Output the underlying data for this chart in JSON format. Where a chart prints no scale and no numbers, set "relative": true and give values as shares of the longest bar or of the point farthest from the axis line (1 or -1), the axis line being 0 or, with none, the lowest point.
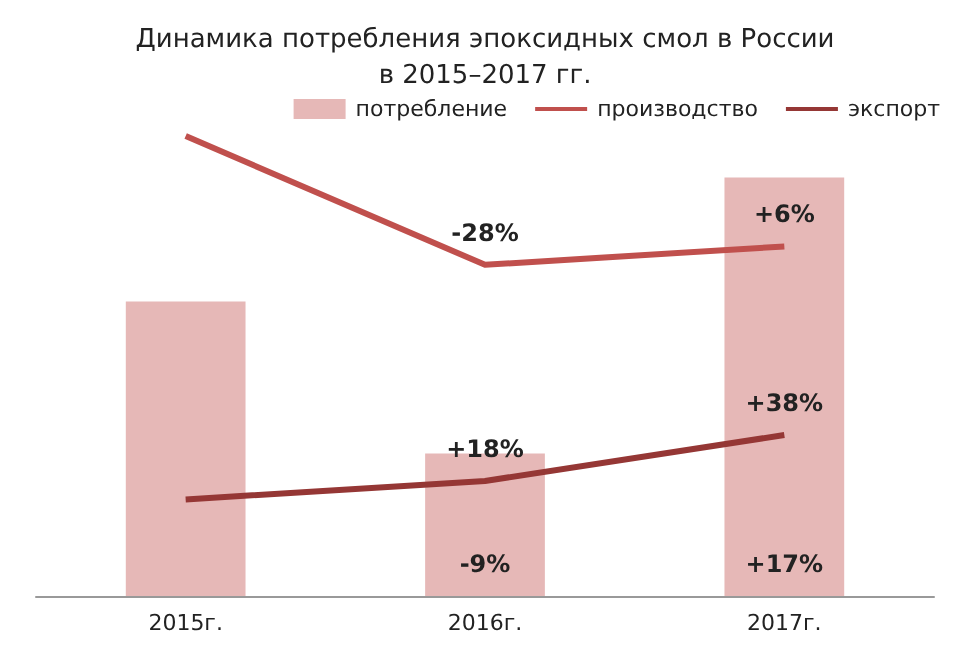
{
  "chart_data": {
    "type": "bar",
    "title": "Динамика потребления эпоксидных смол в России\nв 2015–2017 гг.",
    "relative": true,
    "legend": "top right",
    "categories": [
      "2015г.",
      "2016г.",
      "2017г."
    ],
    "series": [
      {
        "name": "потребление",
        "color": "#e6b8b7",
        "values": [
          0.64,
          0.31,
          0.91
        ]
      },
      {
        "name": "производство",
        "type": "line",
        "color": "#c0504d",
        "values": [
          1,
          0.72,
          0.76
        ]
      },
      {
        "name": "экспорт",
        "type": "line",
        "color": "#953735",
        "values": [
          0.21,
          0.25,
          0.35
        ]
      }
    ],
    "annotations": [
      {
        "text": "-28%",
        "x": "2016г.",
        "y": 0.72
      },
      {
        "text": "+6%",
        "x": "2017г.",
        "y": 0.76
      },
      {
        "text": "+18%",
        "x": "2016г.",
        "y": 0.25
      },
      {
        "text": "+38%",
        "x": "2017г.",
        "y": 0.35
      },
      {
        "text": "-9%",
        "x": "2016г.",
        "y": 0
      },
      {
        "text": "+17%",
        "x": "2017г.",
        "y": 0
      }
    ]
  }
}
